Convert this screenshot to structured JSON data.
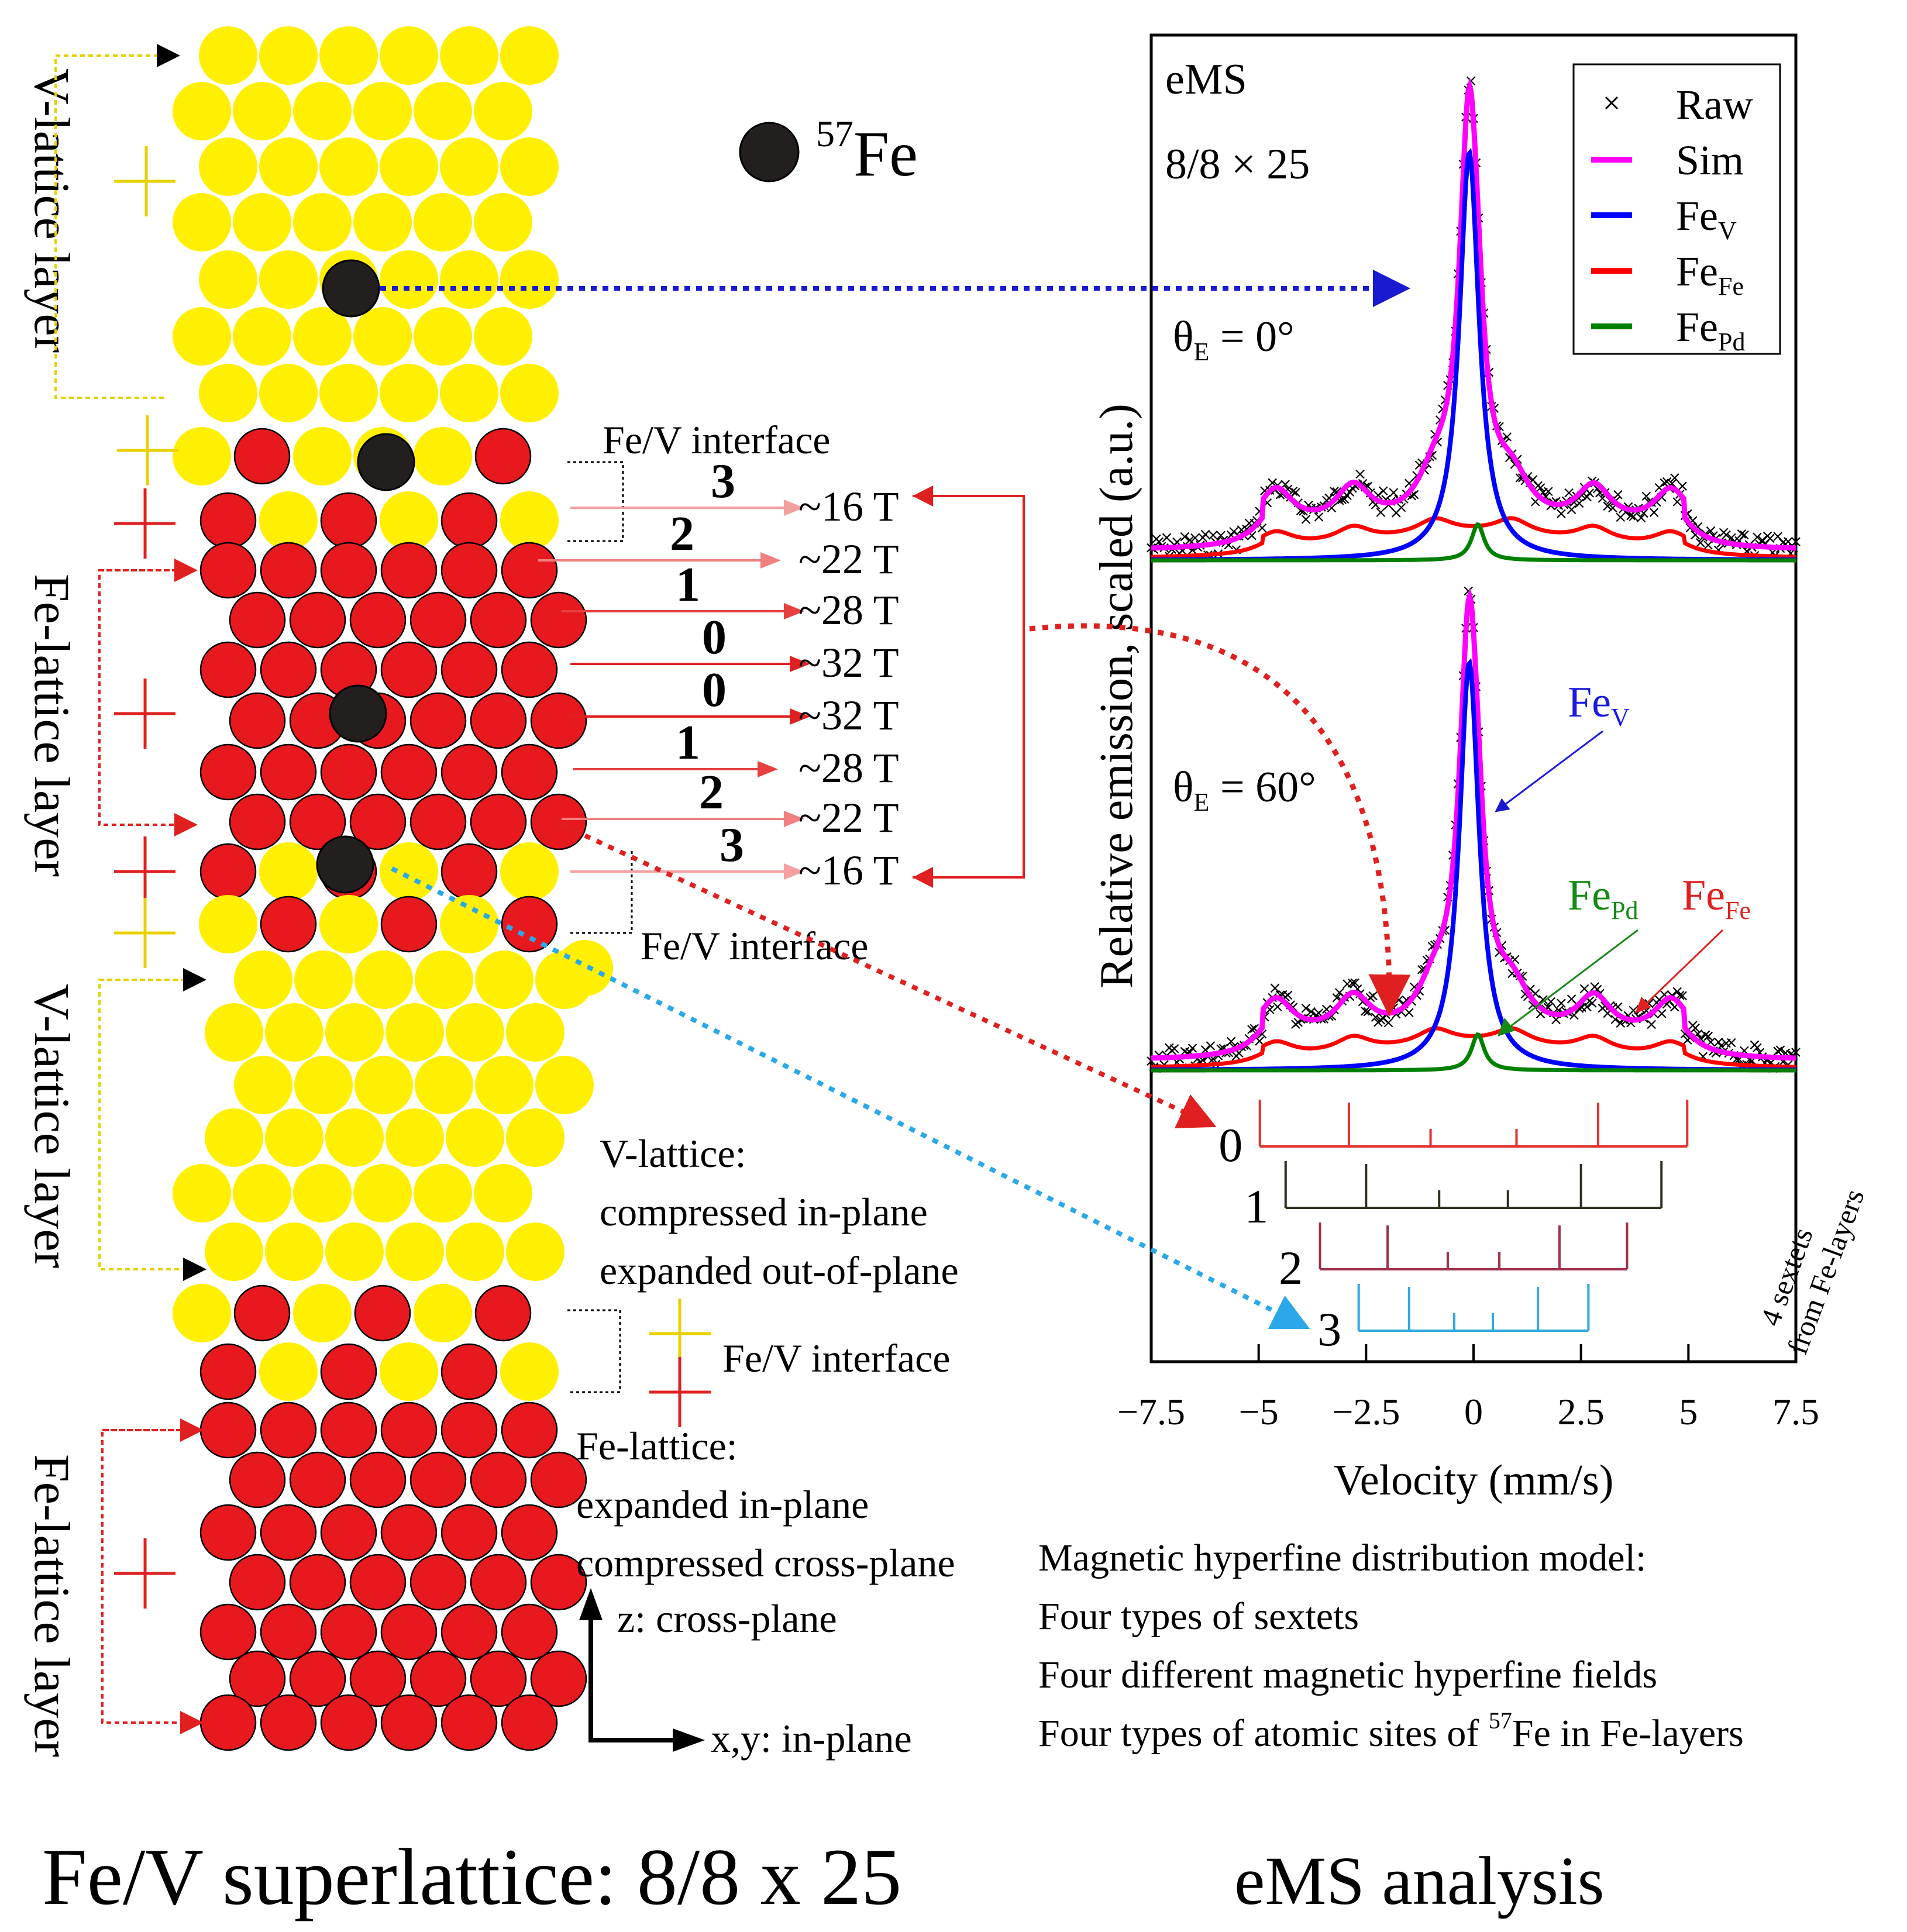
{
  "legend_atom": {
    "sup": "57",
    "label": "Fe"
  },
  "side_labels": {
    "v_top": "V-lattice layer",
    "fe_1": "Fe-lattice layer",
    "v_2": "V-lattice layer",
    "fe_2": "Fe-lattice layer"
  },
  "interface_labels": {
    "top": "Fe/V interface",
    "mid": "Fe/V interface",
    "bottom": "Fe/V interface"
  },
  "layers": {
    "order": [
      "3",
      "2",
      "1",
      "0",
      "0",
      "1",
      "2",
      "3"
    ],
    "fields": [
      "~16 T",
      "~22 T",
      "~28 T",
      "~32 T",
      "~32 T",
      "~28 T",
      "~22 T",
      "~16 T"
    ]
  },
  "notes": {
    "v_lattice": [
      "V-lattice:",
      "compressed in-plane",
      "expanded out-of-plane"
    ],
    "fe_lattice": [
      "Fe-lattice:",
      "expanded in-plane",
      "compressed cross-plane"
    ]
  },
  "axes_arrows": {
    "z": "z: cross-plane",
    "xy": "x,y: in-plane"
  },
  "titles": {
    "left": "Fe/V superlattice: 8/8 x 25",
    "right": "eMS analysis"
  },
  "model_text": {
    "l1": "Magnetic hyperfine distribution model:",
    "l2": "Four types of sextets",
    "l3": "Four different magnetic hyperfine fields",
    "l4_pre": "Four types of atomic sites of ",
    "l4_sup": "57",
    "l4_post": "Fe in Fe-layers"
  },
  "plot": {
    "label_ems": "eMS",
    "label_sample": "8/8 × 25",
    "theta_top": {
      "pre": "θ",
      "sub": "E",
      "post": " = 0°"
    },
    "theta_bottom": {
      "pre": "θ",
      "sub": "E",
      "post": " = 60°"
    },
    "annot_fev": {
      "main": "Fe",
      "sub": "V"
    },
    "annot_fepd": {
      "main": "Fe",
      "sub": "Pd"
    },
    "annot_fefe": {
      "main": "Fe",
      "sub": "Fe"
    },
    "sextet_labels": [
      "0",
      "1",
      "2",
      "3"
    ],
    "sextets_note": [
      "4 sextets",
      "from Fe-layers"
    ]
  },
  "chart_data": {
    "type": "line",
    "xlabel": "Velocity (mm/s)",
    "ylabel": "Relative emission, scaled (a.u.)",
    "xlim": [
      -7.5,
      7.5
    ],
    "xticks": [
      -7.5,
      -5,
      -2.5,
      0,
      2.5,
      5,
      7.5
    ],
    "xtick_labels": [
      "−7.5",
      "−5",
      "−2.5",
      "0",
      "2.5",
      "5",
      "7.5"
    ],
    "legend": [
      {
        "name": "Raw",
        "sub": "",
        "color": "#000000",
        "marker": "x"
      },
      {
        "name": "Sim",
        "sub": "",
        "color": "#ff00ff"
      },
      {
        "name": "Fe",
        "sub": "V",
        "color": "#0000ff"
      },
      {
        "name": "Fe",
        "sub": "Fe",
        "color": "#ff0000"
      },
      {
        "name": "Fe",
        "sub": "Pd",
        "color": "#008000"
      }
    ],
    "panels": [
      {
        "theta_deg": 0,
        "components": {
          "FeV": {
            "center": -0.1,
            "amplitude": 0.85,
            "hwhm": 0.28
          },
          "FePd": {
            "center": 0.1,
            "amplitude": 0.075,
            "hwhm": 0.18
          },
          "FeFe": {
            "amplitude": 0.25,
            "peaks_mm_s": [
              -4.6,
              -2.8,
              -0.9,
              0.9,
              2.8,
              4.6
            ]
          },
          "baseline_wing": 0.07
        }
      },
      {
        "theta_deg": 60,
        "components": {
          "FeV": {
            "center": -0.1,
            "amplitude": 0.85,
            "hwhm": 0.28
          },
          "FePd": {
            "center": 0.1,
            "amplitude": 0.075,
            "hwhm": 0.18
          },
          "FeFe": {
            "amplitude": 0.13,
            "peaks_mm_s": [
              -4.6,
              -2.8,
              -0.9,
              0.9,
              2.8,
              4.6
            ]
          },
          "baseline_wing": 0.07
        }
      }
    ],
    "sextets": [
      {
        "label": "0",
        "field_T": 32,
        "color": "#e03030",
        "lines_mm_s": [
          -4.7,
          -2.9,
          -1.0,
          1.0,
          2.9,
          4.7
        ]
      },
      {
        "label": "1",
        "field_T": 28,
        "color": "#303020",
        "lines_mm_s": [
          -4.1,
          -2.5,
          -0.8,
          0.8,
          2.5,
          4.1
        ]
      },
      {
        "label": "2",
        "field_T": 22,
        "color": "#a0304a",
        "lines_mm_s": [
          -3.3,
          -2.0,
          -0.6,
          0.6,
          2.0,
          3.3
        ]
      },
      {
        "label": "3",
        "field_T": 16,
        "color": "#30a8e0",
        "lines_mm_s": [
          -2.4,
          -1.5,
          -0.45,
          0.45,
          1.5,
          2.4
        ]
      }
    ]
  }
}
